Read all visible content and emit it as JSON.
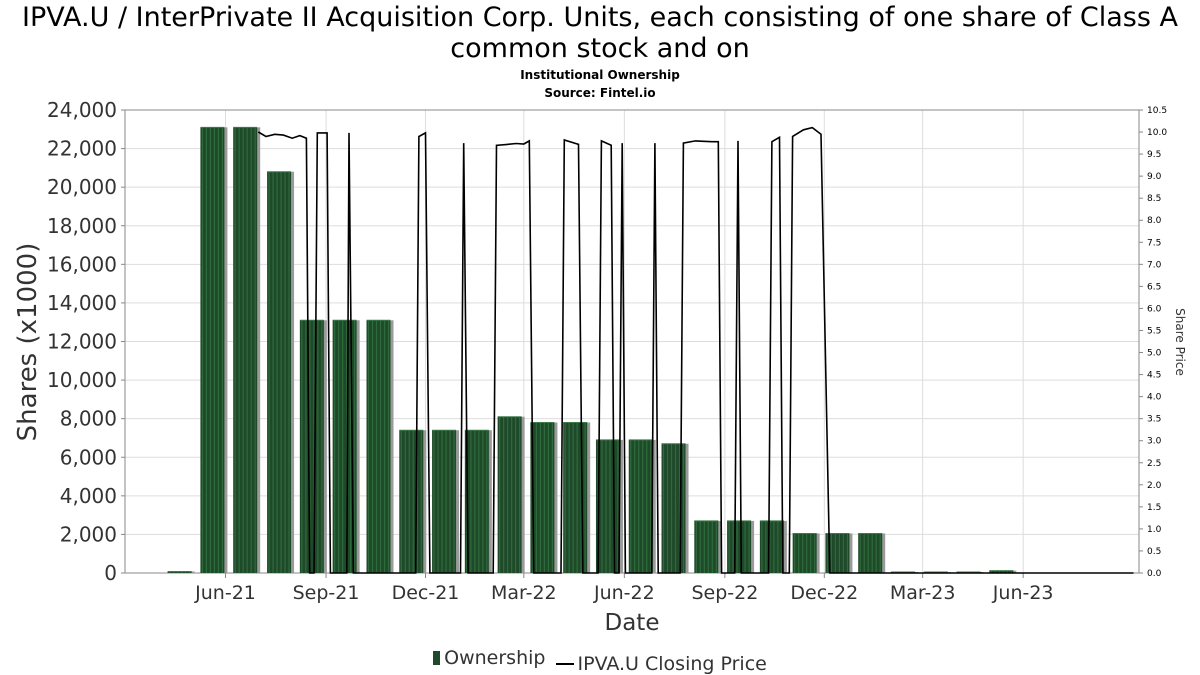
{
  "header": {
    "title": "IPVA.U / InterPrivate II Acquisition Corp. Units, each consisting of one share of Class A common stock and on",
    "subtitle_1": "Institutional Ownership",
    "subtitle_2": "Source: Fintel.io"
  },
  "legend": {
    "ownership_label": "Ownership",
    "price_label": "IPVA.U Closing Price"
  },
  "colors": {
    "bar": "#1f4a2a",
    "bar_shadow": "#9a9a9a",
    "line": "#000000",
    "grid": "#dddddd"
  },
  "chart_data": {
    "type": "bar",
    "xlabel": "Date",
    "ylabel": "Shares (x1000)",
    "y2label": "Share Price",
    "ylim": [
      0,
      24000
    ],
    "y2lim": [
      0,
      10.5
    ],
    "xlim": [
      "2021-03-01",
      "2023-09-15"
    ],
    "y_ticks": [
      "0",
      "2,000",
      "4,000",
      "6,000",
      "8,000",
      "10,000",
      "12,000",
      "14,000",
      "16,000",
      "18,000",
      "20,000",
      "22,000",
      "24,000"
    ],
    "y2_ticks": [
      "0.0",
      "0.5",
      "1.0",
      "1.5",
      "2.0",
      "2.5",
      "3.0",
      "3.5",
      "4.0",
      "4.5",
      "5.0",
      "5.5",
      "6.0",
      "6.5",
      "7.0",
      "7.5",
      "8.0",
      "8.5",
      "9.0",
      "9.5",
      "10.0",
      "10.5"
    ],
    "x_ticks": [
      {
        "label": "Jun-21",
        "date": "2021-06-01"
      },
      {
        "label": "Sep-21",
        "date": "2021-09-01"
      },
      {
        "label": "Dec-21",
        "date": "2021-12-01"
      },
      {
        "label": "Mar-22",
        "date": "2022-03-01"
      },
      {
        "label": "Jun-22",
        "date": "2022-06-01"
      },
      {
        "label": "Sep-22",
        "date": "2022-09-01"
      },
      {
        "label": "Dec-22",
        "date": "2022-12-01"
      },
      {
        "label": "Mar-23",
        "date": "2023-03-01"
      },
      {
        "label": "Jun-23",
        "date": "2023-06-01"
      }
    ],
    "series": [
      {
        "name": "Ownership",
        "type": "bar",
        "points": [
          {
            "date": "2021-04-20",
            "value": 80
          },
          {
            "date": "2021-05-20",
            "value": 23100
          },
          {
            "date": "2021-06-19",
            "value": 23100
          },
          {
            "date": "2021-07-20",
            "value": 20800
          },
          {
            "date": "2021-08-19",
            "value": 13100
          },
          {
            "date": "2021-09-18",
            "value": 13100
          },
          {
            "date": "2021-10-19",
            "value": 13100
          },
          {
            "date": "2021-11-18",
            "value": 7400
          },
          {
            "date": "2021-12-18",
            "value": 7400
          },
          {
            "date": "2022-01-17",
            "value": 7400
          },
          {
            "date": "2022-02-16",
            "value": 8100
          },
          {
            "date": "2022-03-18",
            "value": 7800
          },
          {
            "date": "2022-04-17",
            "value": 7800
          },
          {
            "date": "2022-05-17",
            "value": 6900
          },
          {
            "date": "2022-06-16",
            "value": 6900
          },
          {
            "date": "2022-07-16",
            "value": 6700
          },
          {
            "date": "2022-08-15",
            "value": 2700
          },
          {
            "date": "2022-09-14",
            "value": 2700
          },
          {
            "date": "2022-10-14",
            "value": 2700
          },
          {
            "date": "2022-11-13",
            "value": 2050
          },
          {
            "date": "2022-12-13",
            "value": 2050
          },
          {
            "date": "2023-01-12",
            "value": 2050
          },
          {
            "date": "2023-02-11",
            "value": 0
          },
          {
            "date": "2023-03-13",
            "value": 0
          },
          {
            "date": "2023-04-12",
            "value": 0
          },
          {
            "date": "2023-05-12",
            "value": 120
          }
        ]
      },
      {
        "name": "IPVA.U Closing Price",
        "type": "line",
        "points": [
          {
            "date": "2021-07-01",
            "value": 10.0
          },
          {
            "date": "2021-07-08",
            "value": 9.9
          },
          {
            "date": "2021-07-16",
            "value": 9.95
          },
          {
            "date": "2021-07-24",
            "value": 9.93
          },
          {
            "date": "2021-08-01",
            "value": 9.86
          },
          {
            "date": "2021-08-08",
            "value": 9.92
          },
          {
            "date": "2021-08-14",
            "value": 9.86
          },
          {
            "date": "2021-08-17",
            "value": 0
          },
          {
            "date": "2021-08-21",
            "value": 0
          },
          {
            "date": "2021-08-24",
            "value": 9.98
          },
          {
            "date": "2021-09-02",
            "value": 9.98
          },
          {
            "date": "2021-09-05",
            "value": 0
          },
          {
            "date": "2021-09-20",
            "value": 0
          },
          {
            "date": "2021-09-22",
            "value": 9.98
          },
          {
            "date": "2021-09-26",
            "value": 0
          },
          {
            "date": "2021-11-22",
            "value": 0
          },
          {
            "date": "2021-11-25",
            "value": 9.9
          },
          {
            "date": "2021-12-01",
            "value": 9.98
          },
          {
            "date": "2021-12-05",
            "value": 0
          },
          {
            "date": "2022-01-02",
            "value": 0
          },
          {
            "date": "2022-01-05",
            "value": 9.75
          },
          {
            "date": "2022-01-09",
            "value": 0
          },
          {
            "date": "2022-02-01",
            "value": 0
          },
          {
            "date": "2022-02-04",
            "value": 9.7
          },
          {
            "date": "2022-02-14",
            "value": 9.72
          },
          {
            "date": "2022-02-22",
            "value": 9.74
          },
          {
            "date": "2022-03-01",
            "value": 9.73
          },
          {
            "date": "2022-03-06",
            "value": 9.8
          },
          {
            "date": "2022-03-10",
            "value": 0
          },
          {
            "date": "2022-04-04",
            "value": 0
          },
          {
            "date": "2022-04-07",
            "value": 9.82
          },
          {
            "date": "2022-04-20",
            "value": 9.72
          },
          {
            "date": "2022-04-24",
            "value": 0
          },
          {
            "date": "2022-05-08",
            "value": 0
          },
          {
            "date": "2022-05-11",
            "value": 9.8
          },
          {
            "date": "2022-05-20",
            "value": 9.7
          },
          {
            "date": "2022-05-23",
            "value": 0
          },
          {
            "date": "2022-05-27",
            "value": 0
          },
          {
            "date": "2022-05-30",
            "value": 9.75
          },
          {
            "date": "2022-06-02",
            "value": 0
          },
          {
            "date": "2022-06-26",
            "value": 0
          },
          {
            "date": "2022-06-29",
            "value": 9.75
          },
          {
            "date": "2022-07-02",
            "value": 0
          },
          {
            "date": "2022-07-22",
            "value": 0
          },
          {
            "date": "2022-07-25",
            "value": 9.75
          },
          {
            "date": "2022-08-05",
            "value": 9.8
          },
          {
            "date": "2022-08-20",
            "value": 9.78
          },
          {
            "date": "2022-08-26",
            "value": 9.78
          },
          {
            "date": "2022-08-29",
            "value": 0
          },
          {
            "date": "2022-09-10",
            "value": 0
          },
          {
            "date": "2022-09-13",
            "value": 9.8
          },
          {
            "date": "2022-09-16",
            "value": 0
          },
          {
            "date": "2022-10-11",
            "value": 0
          },
          {
            "date": "2022-10-14",
            "value": 9.78
          },
          {
            "date": "2022-10-21",
            "value": 9.88
          },
          {
            "date": "2022-10-24",
            "value": 0
          },
          {
            "date": "2022-10-30",
            "value": 0
          },
          {
            "date": "2022-11-02",
            "value": 9.9
          },
          {
            "date": "2022-11-12",
            "value": 10.05
          },
          {
            "date": "2022-11-20",
            "value": 10.1
          },
          {
            "date": "2022-11-28",
            "value": 9.95
          },
          {
            "date": "2022-12-06",
            "value": 0
          },
          {
            "date": "2023-09-10",
            "value": 0
          }
        ]
      }
    ]
  }
}
